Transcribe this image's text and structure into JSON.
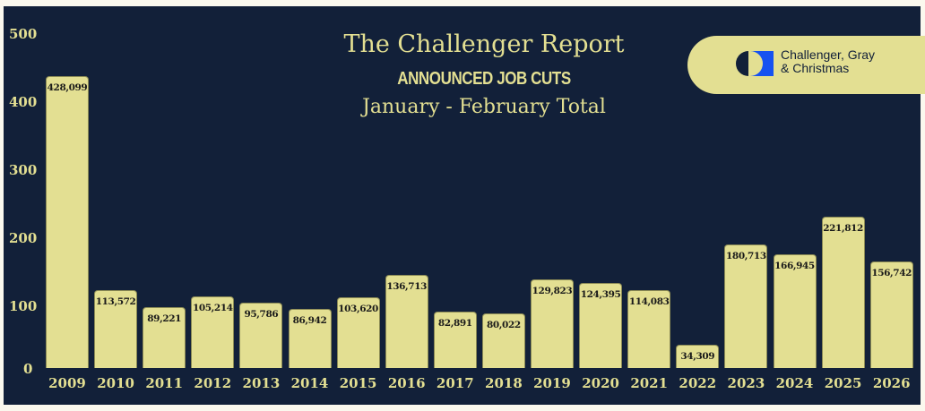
{
  "chart_data": {
    "type": "bar",
    "title": "The Challenger Report",
    "subtitle": "ANNOUNCED JOB CUTS",
    "subtitle2": "January - February Total",
    "xlabel": "",
    "ylabel": "",
    "ylim": [
      0,
      500
    ],
    "yticks": [
      "500",
      "400",
      "300",
      "200",
      "100",
      "0"
    ],
    "grid": false,
    "legend": null,
    "categories": [
      "2009",
      "2010",
      "2011",
      "2012",
      "2013",
      "2014",
      "2015",
      "2016",
      "2017",
      "2018",
      "2019",
      "2020",
      "2021",
      "2022",
      "2023",
      "2024",
      "2025",
      "2026"
    ],
    "values": [
      428099,
      113572,
      89221,
      105214,
      95786,
      86942,
      103620,
      136713,
      82891,
      80022,
      129823,
      124395,
      114083,
      34309,
      180713,
      166945,
      221812,
      156742
    ],
    "value_labels": [
      "428,099",
      "113,572",
      "89,221",
      "105,214",
      "95,786",
      "86,942",
      "103,620",
      "136,713",
      "82,891",
      "80,022",
      "129,823",
      "124,395",
      "114,083",
      "34,309",
      "180,713",
      "166,945",
      "221,812",
      "156,742"
    ],
    "y_unit": "thousands"
  },
  "logo": {
    "line1": "Challenger, Gray",
    "line2": "& Christmas"
  },
  "colors": {
    "background": "#122039",
    "bar": "#e3df92",
    "text": "#e3df92",
    "logo_blue": "#1652f0"
  }
}
